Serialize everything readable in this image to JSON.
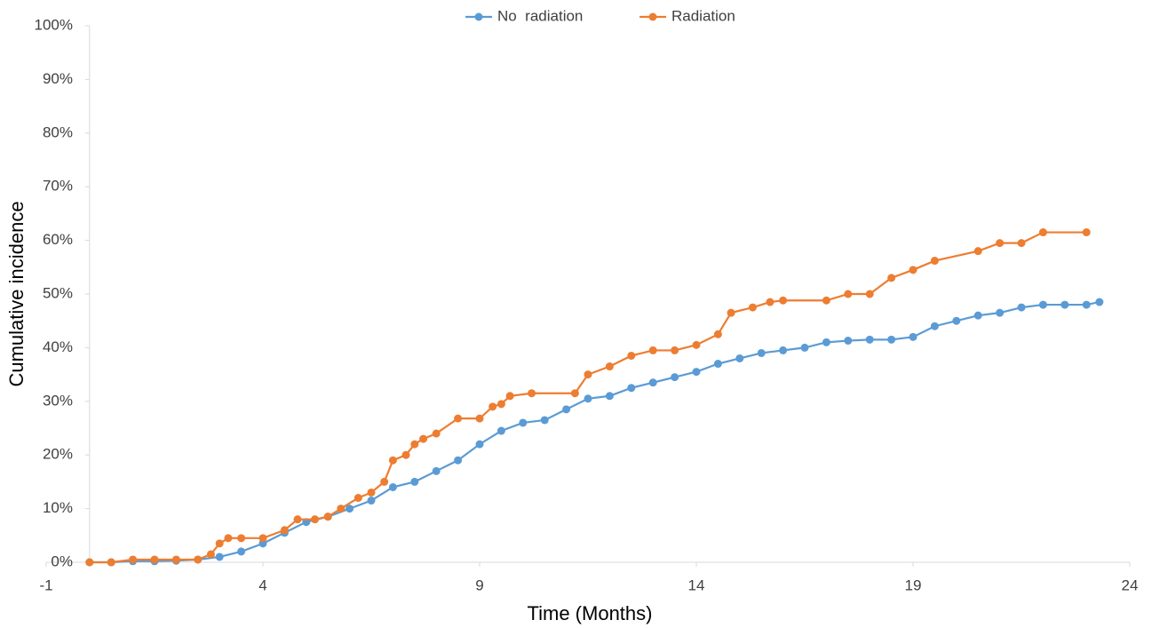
{
  "chart_data": {
    "type": "line",
    "x_label": "Time (Months)",
    "y_label": "Cumulative incidence",
    "xlim": [
      -1,
      24
    ],
    "xticks": [
      -1,
      4,
      9,
      14,
      19,
      24
    ],
    "ylim": [
      0,
      100
    ],
    "yticks": [
      {
        "value": 0,
        "label": "0%"
      },
      {
        "value": 10,
        "label": "10%"
      },
      {
        "value": 20,
        "label": "20%"
      },
      {
        "value": 30,
        "label": "30%"
      },
      {
        "value": 40,
        "label": "40%"
      },
      {
        "value": 50,
        "label": "50%"
      },
      {
        "value": 60,
        "label": "60%"
      },
      {
        "value": 70,
        "label": "70%"
      },
      {
        "value": 80,
        "label": "80%"
      },
      {
        "value": 90,
        "label": "90%"
      },
      {
        "value": 100,
        "label": "100%"
      }
    ],
    "legend": "top",
    "series": [
      {
        "name": "No  radiation",
        "color": "#5b9bd5",
        "x": [
          0,
          0.5,
          1,
          1.5,
          2,
          2.5,
          3,
          3.5,
          4,
          4.5,
          5,
          5.5,
          6,
          6.5,
          7,
          7.5,
          8,
          8.5,
          9,
          9.5,
          10,
          10.5,
          11,
          11.5,
          12,
          12.5,
          13,
          13.5,
          14,
          14.5,
          15,
          15.5,
          16,
          16.5,
          17,
          17.5,
          18,
          18.5,
          19,
          19.5,
          20,
          20.5,
          21,
          21.5,
          22,
          22.5,
          23,
          23.3
        ],
        "values": [
          0,
          0,
          0.2,
          0.2,
          0.3,
          0.5,
          1,
          2,
          3.5,
          5.5,
          7.5,
          8.5,
          10,
          11.5,
          14,
          15,
          17,
          19,
          22,
          24.5,
          26,
          26.5,
          28.5,
          30.5,
          31,
          32.5,
          33.5,
          34.5,
          35.5,
          37,
          38,
          39,
          39.5,
          40,
          41,
          41.3,
          41.5,
          41.5,
          42,
          44,
          45,
          46,
          46.5,
          47.5,
          48,
          48,
          48,
          48.5
        ]
      },
      {
        "name": "Radiation",
        "color": "#ed7d31",
        "x": [
          0,
          0.5,
          1,
          1.5,
          2,
          2.5,
          2.8,
          3,
          3.2,
          3.5,
          4,
          4.5,
          4.8,
          5.2,
          5.5,
          5.8,
          6.2,
          6.5,
          6.8,
          7,
          7.3,
          7.5,
          7.7,
          8,
          8.5,
          9,
          9.3,
          9.5,
          9.7,
          10.2,
          11.2,
          11.5,
          12,
          12.5,
          13,
          13.5,
          14,
          14.5,
          14.8,
          15.3,
          15.7,
          16,
          17,
          17.5,
          18,
          18.5,
          19,
          19.5,
          20.5,
          21,
          21.5,
          22,
          23
        ],
        "values": [
          0,
          0,
          0.5,
          0.5,
          0.5,
          0.5,
          1.5,
          3.5,
          4.5,
          4.5,
          4.5,
          6,
          8,
          8,
          8.5,
          10,
          12,
          13,
          15,
          19,
          20,
          22,
          23,
          24,
          26.8,
          26.8,
          29,
          29.5,
          31,
          31.5,
          31.5,
          35,
          36.5,
          38.5,
          39.5,
          39.5,
          40.5,
          42.5,
          46.5,
          47.5,
          48.5,
          48.8,
          48.8,
          50,
          50,
          53,
          54.5,
          56.2,
          58,
          59.5,
          59.5,
          61.5,
          61.5
        ]
      }
    ]
  }
}
